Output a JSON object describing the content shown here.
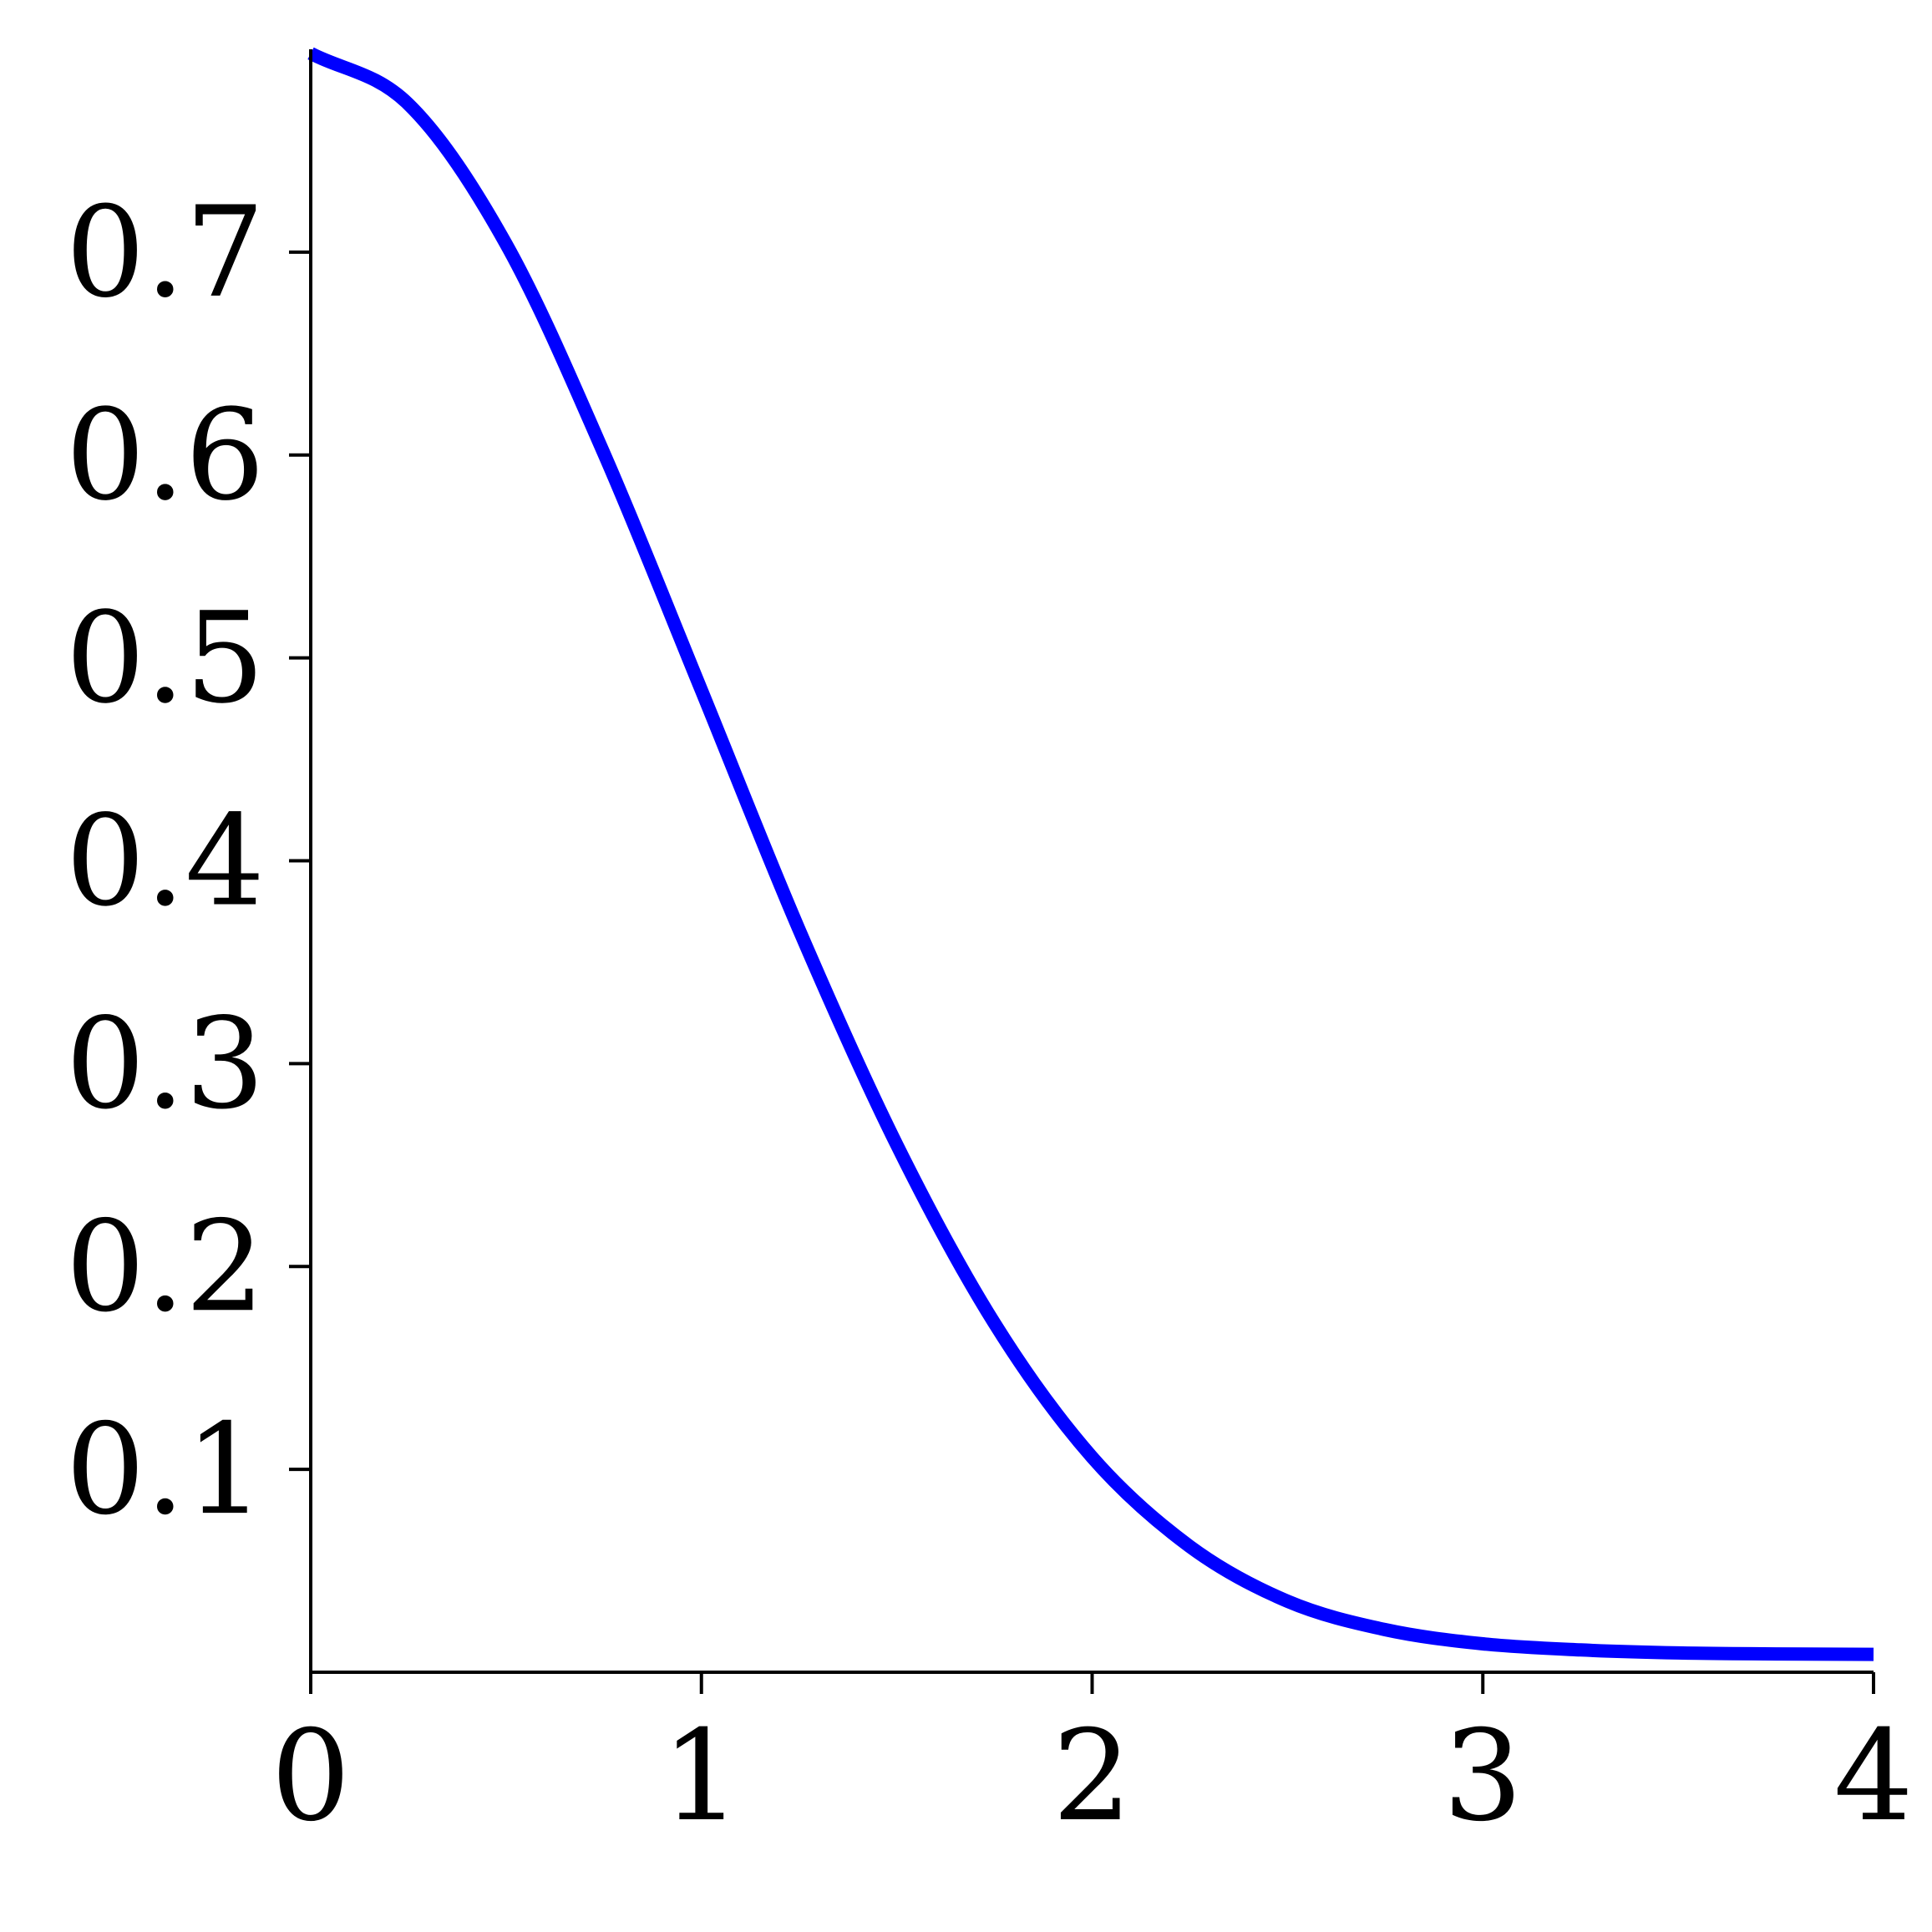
{
  "chart_data": {
    "type": "line",
    "title": "",
    "xlabel": "",
    "ylabel": "",
    "xlim": [
      0,
      4
    ],
    "ylim": [
      0,
      0.8
    ],
    "grid": false,
    "x_ticks": [
      0,
      1,
      2,
      3,
      4
    ],
    "x_tick_labels": [
      "0",
      "1",
      "2",
      "3",
      "4"
    ],
    "y_ticks": [
      0.1,
      0.2,
      0.3,
      0.4,
      0.5,
      0.6,
      0.7
    ],
    "y_tick_labels": [
      "0.1",
      "0.2",
      "0.3",
      "0.4",
      "0.5",
      "0.6",
      "0.7"
    ],
    "series": [
      {
        "color": "#0000ff",
        "x": [
          0,
          0.25,
          0.5,
          0.75,
          1.0,
          1.25,
          1.5,
          1.75,
          2.0,
          2.25,
          2.5,
          2.75,
          3.0,
          3.25,
          3.5,
          3.75,
          4.0
        ],
        "y": [
          0.798,
          0.773,
          0.704,
          0.601,
          0.484,
          0.366,
          0.26,
          0.172,
          0.106,
          0.062,
          0.035,
          0.021,
          0.014,
          0.011,
          0.0095,
          0.009,
          0.0088
        ]
      }
    ]
  }
}
